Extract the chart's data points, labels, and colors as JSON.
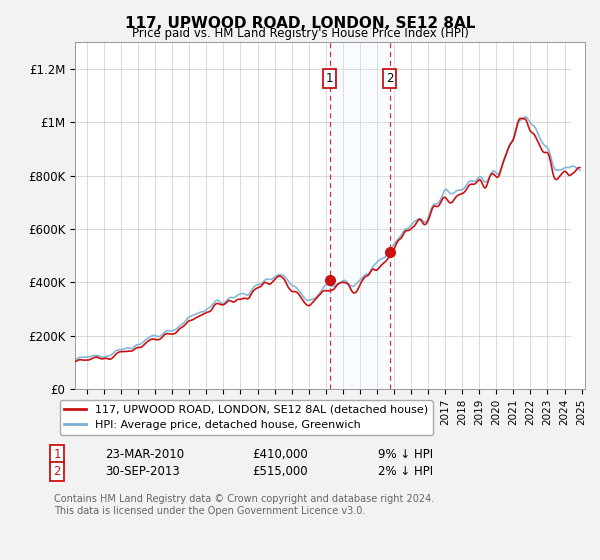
{
  "title": "117, UPWOOD ROAD, LONDON, SE12 8AL",
  "subtitle": "Price paid vs. HM Land Registry's House Price Index (HPI)",
  "property_label": "117, UPWOOD ROAD, LONDON, SE12 8AL (detached house)",
  "hpi_label": "HPI: Average price, detached house, Greenwich",
  "footer": "Contains HM Land Registry data © Crown copyright and database right 2024.\nThis data is licensed under the Open Government Licence v3.0.",
  "sale1_x": 2010.23,
  "sale1_y": 410000,
  "sale2_x": 2013.75,
  "sale2_y": 515000,
  "ylim": [
    0,
    1300000
  ],
  "yticks": [
    0,
    200000,
    400000,
    600000,
    800000,
    1000000,
    1200000
  ],
  "ytick_labels": [
    "£0",
    "£200K",
    "£400K",
    "£600K",
    "£800K",
    "£1M",
    "£1.2M"
  ],
  "xlim": [
    1995.3,
    2025.2
  ],
  "background_color": "#f2f2f2",
  "plot_bg_color": "#ffffff",
  "hpi_line_color": "#7ab0d4",
  "property_line_color": "#cc1111",
  "annotation_box_color": "#cc1111",
  "shade_color": "#ddeeff",
  "hatch_start": 2024.4,
  "hatch_end": 2025.5,
  "row1_date": "23-MAR-2010",
  "row1_price": "£410,000",
  "row1_hpi": "9% ↓ HPI",
  "row2_date": "30-SEP-2013",
  "row2_price": "£515,000",
  "row2_hpi": "2% ↓ HPI"
}
